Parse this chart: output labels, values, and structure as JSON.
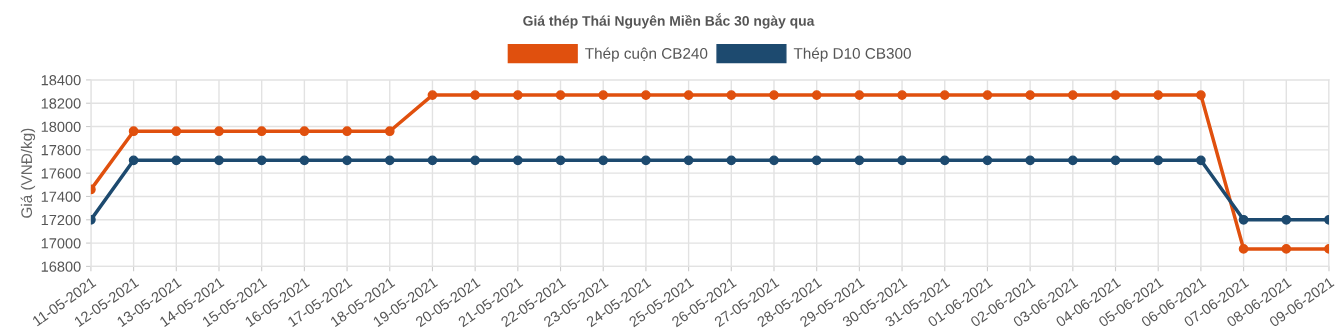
{
  "chart_data": {
    "type": "line",
    "title": "Giá thép Thái Nguyên Miền Bắc 30 ngày qua",
    "ylabel": "Giá (VNĐ/kg)",
    "categories": [
      "11-05-2021",
      "12-05-2021",
      "13-05-2021",
      "14-05-2021",
      "15-05-2021",
      "16-05-2021",
      "17-05-2021",
      "18-05-2021",
      "19-05-2021",
      "20-05-2021",
      "21-05-2021",
      "22-05-2021",
      "23-05-2021",
      "24-05-2021",
      "25-05-2021",
      "26-05-2021",
      "27-05-2021",
      "28-05-2021",
      "29-05-2021",
      "30-05-2021",
      "31-05-2021",
      "01-06-2021",
      "02-06-2021",
      "03-06-2021",
      "04-06-2021",
      "05-06-2021",
      "06-06-2021",
      "07-06-2021",
      "08-06-2021",
      "09-06-2021"
    ],
    "series": [
      {
        "name": "Thép cuộn CB240",
        "color": "#e0500e",
        "values": [
          17460,
          17960,
          17960,
          17960,
          17960,
          17960,
          17960,
          17960,
          18270,
          18270,
          18270,
          18270,
          18270,
          18270,
          18270,
          18270,
          18270,
          18270,
          18270,
          18270,
          18270,
          18270,
          18270,
          18270,
          18270,
          18270,
          18270,
          16950,
          16950,
          16950
        ]
      },
      {
        "name": "Thép D10 CB300",
        "color": "#1d4a6f",
        "values": [
          17200,
          17710,
          17710,
          17710,
          17710,
          17710,
          17710,
          17710,
          17710,
          17710,
          17710,
          17710,
          17710,
          17710,
          17710,
          17710,
          17710,
          17710,
          17710,
          17710,
          17710,
          17710,
          17710,
          17710,
          17710,
          17710,
          17710,
          17200,
          17200,
          17200
        ]
      }
    ],
    "ylim": [
      16800,
      18400
    ],
    "yticks": [
      16800,
      17000,
      17200,
      17400,
      17600,
      17800,
      18000,
      18200,
      18400
    ],
    "grid": true,
    "legend": "top",
    "marker": "circle",
    "line_style": "solid"
  }
}
